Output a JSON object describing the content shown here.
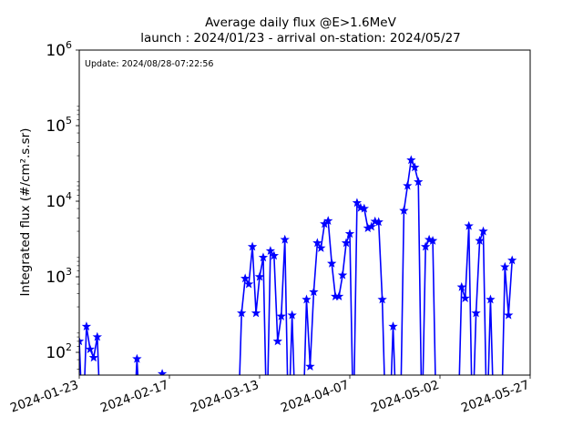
{
  "chart_data": {
    "type": "line",
    "title": "Average daily flux @E>1.6MeV",
    "subtitle": "launch : 2024/01/23 - arrival on-station: 2024/05/27",
    "annotation": "Update: 2024/08/28-07:22:56",
    "xlabel": "",
    "ylabel": "Integrated flux (#/cm².s.sr)",
    "yscale": "log",
    "xlim": [
      "2024-01-23",
      "2024-05-27"
    ],
    "ylim": [
      50,
      1000000
    ],
    "grid": false,
    "line_color": "#0000ff",
    "marker": "star",
    "x_ticks": [
      "2024-01-23",
      "2024-02-17",
      "2024-03-13",
      "2024-04-07",
      "2024-05-02",
      "2024-05-27"
    ],
    "y_ticks": [
      {
        "value": 100,
        "base": "10",
        "exp": "2"
      },
      {
        "value": 1000,
        "base": "10",
        "exp": "3"
      },
      {
        "value": 10000,
        "base": "10",
        "exp": "4"
      },
      {
        "value": 100000,
        "base": "10",
        "exp": "5"
      },
      {
        "value": 1000000,
        "base": "10",
        "exp": "6"
      }
    ],
    "series": [
      {
        "points": [
          [
            "2024-01-23",
            140
          ],
          [
            "2024-01-24",
            0
          ],
          [
            "2024-01-25",
            220
          ],
          [
            "2024-01-26",
            110
          ],
          [
            "2024-01-27",
            85
          ],
          [
            "2024-01-28",
            160
          ],
          [
            "2024-01-29",
            0
          ],
          [
            "2024-02-07",
            0
          ],
          [
            "2024-02-08",
            82
          ],
          [
            "2024-02-09",
            0
          ],
          [
            "2024-02-14",
            0
          ],
          [
            "2024-02-15",
            52
          ],
          [
            "2024-02-16",
            0
          ],
          [
            "2024-03-07",
            0
          ],
          [
            "2024-03-08",
            330
          ],
          [
            "2024-03-09",
            950
          ],
          [
            "2024-03-10",
            800
          ],
          [
            "2024-03-11",
            2500
          ],
          [
            "2024-03-12",
            330
          ],
          [
            "2024-03-13",
            1000
          ],
          [
            "2024-03-14",
            1800
          ],
          [
            "2024-03-15",
            0
          ],
          [
            "2024-03-16",
            2200
          ],
          [
            "2024-03-17",
            1900
          ],
          [
            "2024-03-18",
            140
          ],
          [
            "2024-03-19",
            300
          ],
          [
            "2024-03-20",
            3100
          ],
          [
            "2024-03-21",
            0
          ],
          [
            "2024-03-22",
            310
          ],
          [
            "2024-03-23",
            0
          ],
          [
            "2024-03-25",
            0
          ],
          [
            "2024-03-26",
            500
          ],
          [
            "2024-03-27",
            65
          ],
          [
            "2024-03-28",
            630
          ],
          [
            "2024-03-29",
            2800
          ],
          [
            "2024-03-30",
            2400
          ],
          [
            "2024-03-31",
            5000
          ],
          [
            "2024-04-01",
            5500
          ],
          [
            "2024-04-02",
            1500
          ],
          [
            "2024-04-03",
            550
          ],
          [
            "2024-04-04",
            550
          ],
          [
            "2024-04-05",
            1050
          ],
          [
            "2024-04-06",
            2800
          ],
          [
            "2024-04-07",
            3700
          ],
          [
            "2024-04-08",
            0
          ],
          [
            "2024-04-09",
            9500
          ],
          [
            "2024-04-10",
            8200
          ],
          [
            "2024-04-11",
            8000
          ],
          [
            "2024-04-12",
            4400
          ],
          [
            "2024-04-13",
            4600
          ],
          [
            "2024-04-14",
            5400
          ],
          [
            "2024-04-15",
            5300
          ],
          [
            "2024-04-16",
            500
          ],
          [
            "2024-04-17",
            0
          ],
          [
            "2024-04-18",
            0
          ],
          [
            "2024-04-19",
            220
          ],
          [
            "2024-04-20",
            0
          ],
          [
            "2024-04-21",
            0
          ],
          [
            "2024-04-22",
            7500
          ],
          [
            "2024-04-23",
            16000
          ],
          [
            "2024-04-24",
            35000
          ],
          [
            "2024-04-25",
            28000
          ],
          [
            "2024-04-26",
            18000
          ],
          [
            "2024-04-27",
            0
          ],
          [
            "2024-04-28",
            2500
          ],
          [
            "2024-04-29",
            3100
          ],
          [
            "2024-04-30",
            3000
          ],
          [
            "2024-05-01",
            0
          ],
          [
            "2024-05-07",
            0
          ],
          [
            "2024-05-08",
            730
          ],
          [
            "2024-05-09",
            520
          ],
          [
            "2024-05-10",
            4700
          ],
          [
            "2024-05-11",
            0
          ],
          [
            "2024-05-12",
            330
          ],
          [
            "2024-05-13",
            3000
          ],
          [
            "2024-05-14",
            4000
          ],
          [
            "2024-05-15",
            0
          ],
          [
            "2024-05-16",
            500
          ],
          [
            "2024-05-17",
            0
          ],
          [
            "2024-05-19",
            0
          ],
          [
            "2024-05-20",
            1350
          ],
          [
            "2024-05-21",
            310
          ],
          [
            "2024-05-22",
            1650
          ]
        ]
      }
    ]
  }
}
